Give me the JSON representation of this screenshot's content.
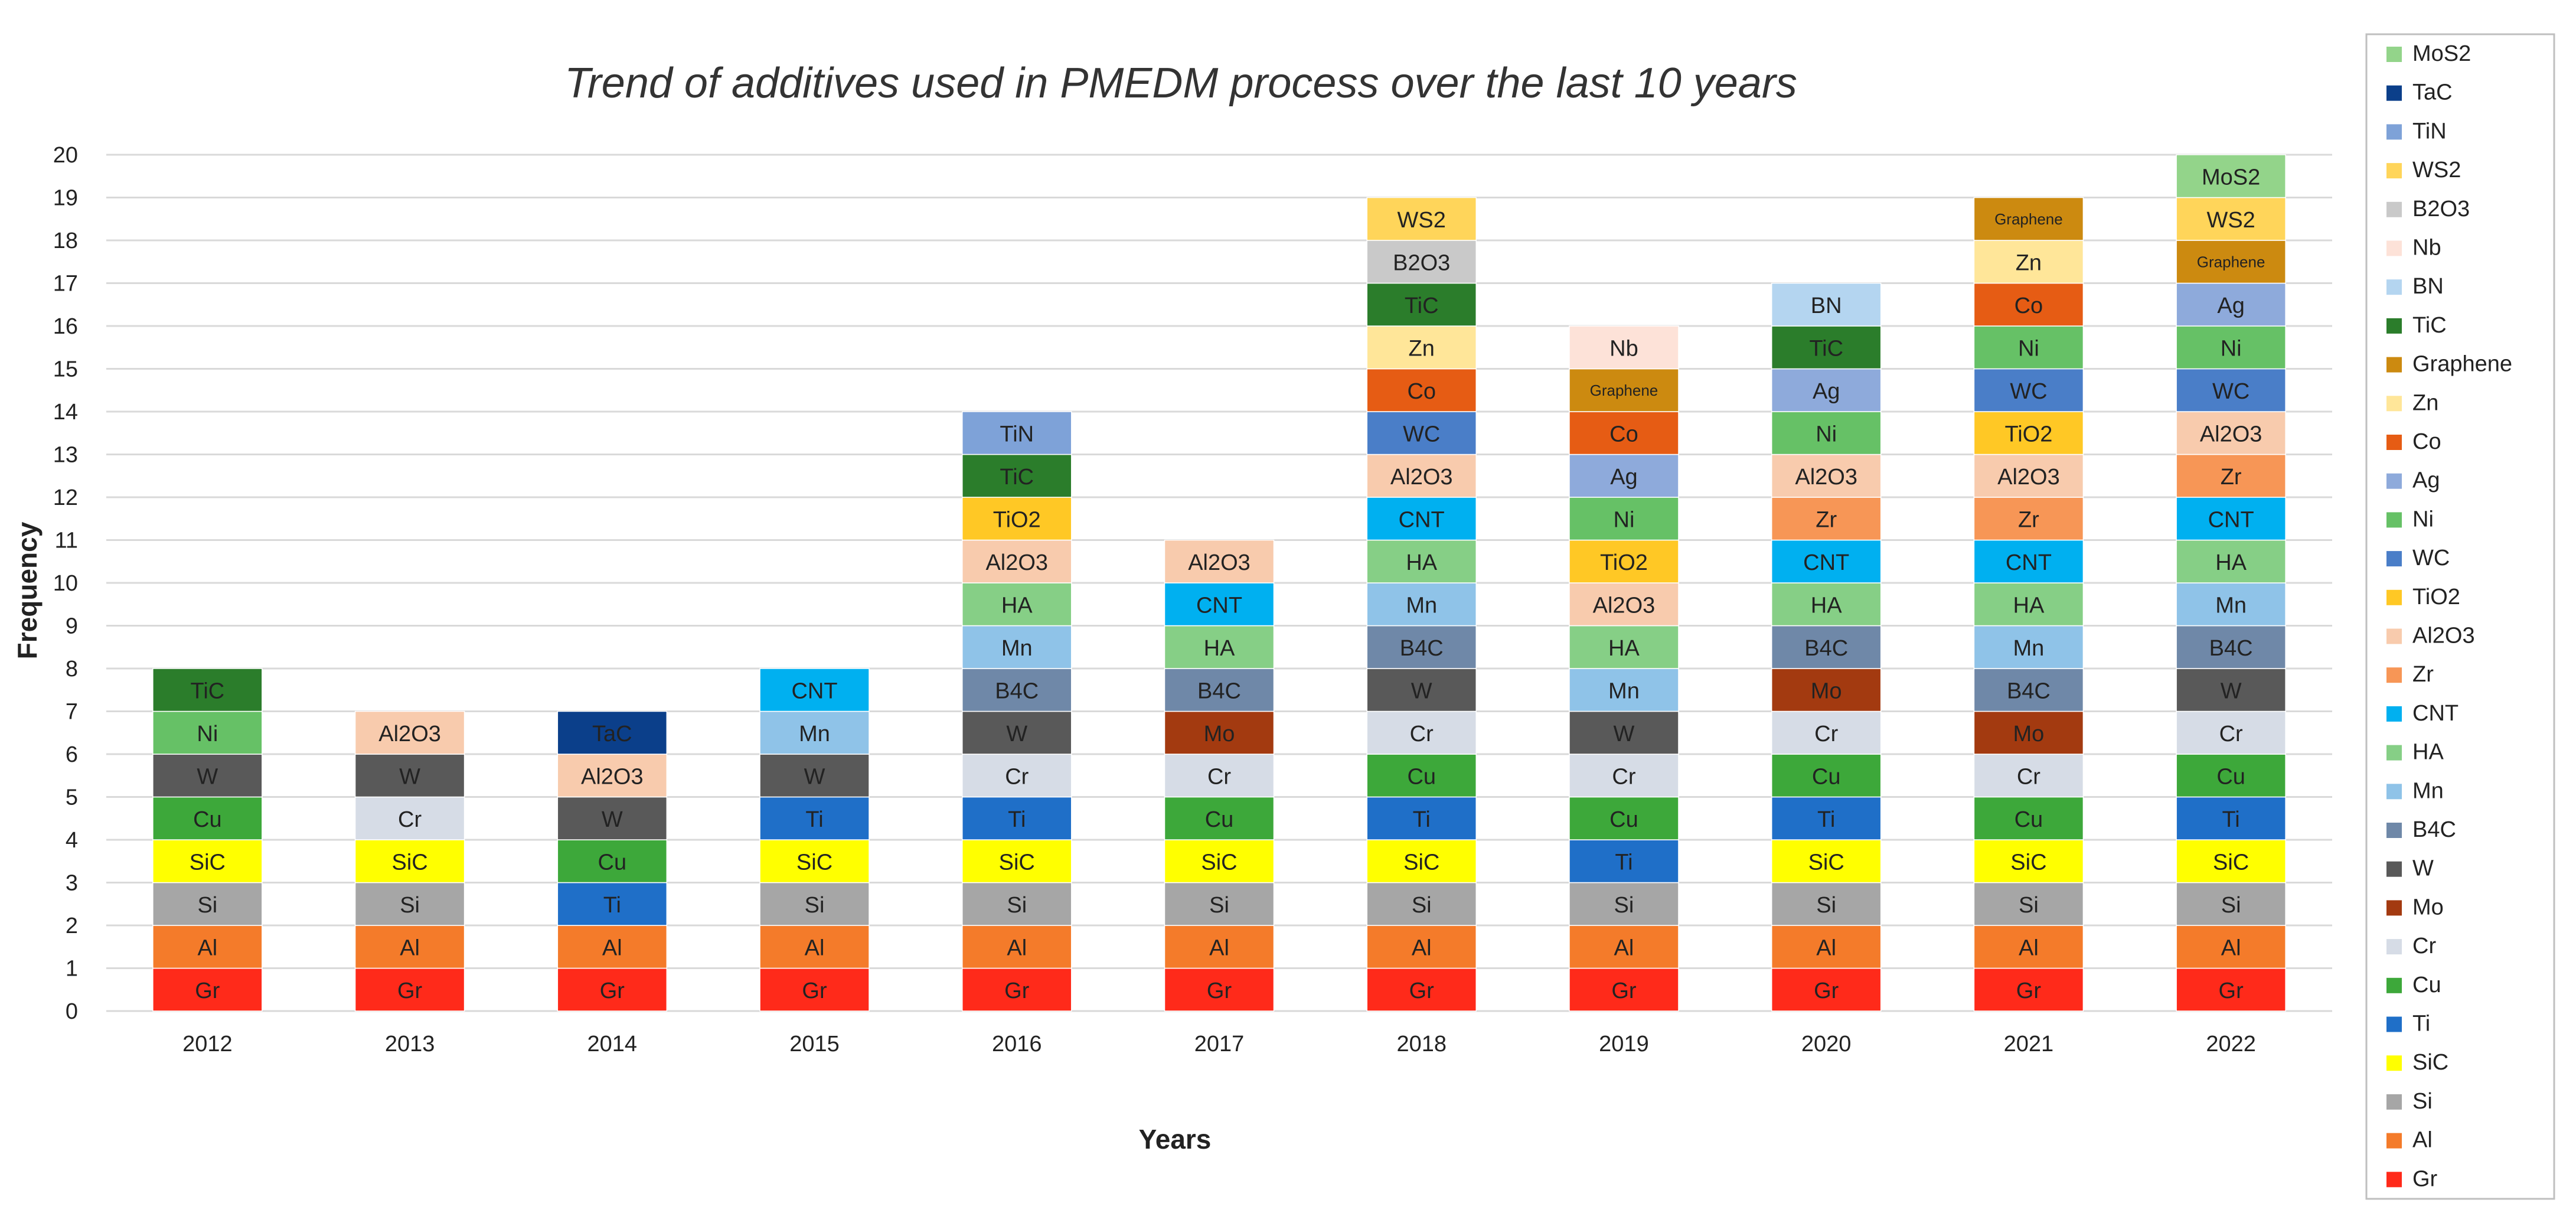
{
  "chart_data": {
    "type": "bar",
    "stacked": true,
    "title": "Trend of additives used in PMEDM process over the last 10 years",
    "xlabel": "Years",
    "ylabel": "Frequency",
    "ylim": [
      0,
      20
    ],
    "yticks": [
      0,
      1,
      2,
      3,
      4,
      5,
      6,
      7,
      8,
      9,
      10,
      11,
      12,
      13,
      14,
      15,
      16,
      17,
      18,
      19,
      20
    ],
    "grid": true,
    "legend_position": "right",
    "categories": [
      "2012",
      "2013",
      "2014",
      "2015",
      "2016",
      "2017",
      "2018",
      "2019",
      "2020",
      "2021",
      "2022"
    ],
    "colors": {
      "Gr": "#ff2a1a",
      "Al": "#f47b2a",
      "Si": "#a6a6a6",
      "SiC": "#ffff00",
      "Ti": "#1f6fc8",
      "Cu": "#3da83a",
      "Cr": "#d6dce6",
      "Mo": "#a33a10",
      "W": "#595959",
      "B4C": "#6f88a8",
      "Mn": "#8fc3e8",
      "HA": "#86cf86",
      "CNT": "#00b0f0",
      "Zr": "#f79656",
      "Al2O3": "#f8cbad",
      "TiO2": "#ffc825",
      "WC": "#4a7ec8",
      "Ni": "#66c166",
      "Ag": "#8eaadb",
      "Co": "#e65c14",
      "Zn": "#ffe699",
      "Graphene": "#cc8a10",
      "TiC": "#2b7d2b",
      "BN": "#b4d5f0",
      "Nb": "#fde2d8",
      "B2O3": "#c9c9c9",
      "WS2": "#ffd55a",
      "TiN": "#7ea2d8",
      "TaC": "#0b3f8a",
      "MoS2": "#93d48a"
    },
    "stacks": [
      [
        "Gr",
        "Al",
        "Si",
        "SiC",
        "Cu",
        "W",
        "Ni",
        "TiC"
      ],
      [
        "Gr",
        "Al",
        "Si",
        "SiC",
        "Cr",
        "W",
        "Al2O3"
      ],
      [
        "Gr",
        "Al",
        "Ti",
        "Cu",
        "W",
        "Al2O3",
        "TaC"
      ],
      [
        "Gr",
        "Al",
        "Si",
        "SiC",
        "Ti",
        "W",
        "Mn",
        "CNT"
      ],
      [
        "Gr",
        "Al",
        "Si",
        "SiC",
        "Ti",
        "Cr",
        "W",
        "B4C",
        "Mn",
        "HA",
        "Al2O3",
        "TiO2",
        "TiC",
        "TiN"
      ],
      [
        "Gr",
        "Al",
        "Si",
        "SiC",
        "Cu",
        "Cr",
        "Mo",
        "B4C",
        "HA",
        "CNT",
        "Al2O3"
      ],
      [
        "Gr",
        "Al",
        "Si",
        "SiC",
        "Ti",
        "Cu",
        "Cr",
        "W",
        "B4C",
        "Mn",
        "HA",
        "CNT",
        "Al2O3",
        "WC",
        "Co",
        "Zn",
        "TiC",
        "B2O3",
        "WS2"
      ],
      [
        "Gr",
        "Al",
        "Si",
        "Ti",
        "Cu",
        "Cr",
        "W",
        "Mn",
        "HA",
        "Al2O3",
        "TiO2",
        "Ni",
        "Ag",
        "Co",
        "Graphene",
        "Nb"
      ],
      [
        "Gr",
        "Al",
        "Si",
        "SiC",
        "Ti",
        "Cu",
        "Cr",
        "Mo",
        "B4C",
        "HA",
        "CNT",
        "Zr",
        "Al2O3",
        "Ni",
        "Ag",
        "TiC",
        "BN"
      ],
      [
        "Gr",
        "Al",
        "Si",
        "SiC",
        "Cu",
        "Cr",
        "Mo",
        "B4C",
        "Mn",
        "HA",
        "CNT",
        "Zr",
        "Al2O3",
        "TiO2",
        "WC",
        "Ni",
        "Co",
        "Zn",
        "Graphene"
      ],
      [
        "Gr",
        "Al",
        "Si",
        "SiC",
        "Ti",
        "Cu",
        "Cr",
        "W",
        "B4C",
        "Mn",
        "HA",
        "CNT",
        "Zr",
        "Al2O3",
        "WC",
        "Ni",
        "Ag",
        "Graphene",
        "WS2",
        "MoS2"
      ]
    ],
    "segment_labels": {
      "Al2O3": "Al2O3",
      "Graphene": "Graphene"
    },
    "legend": [
      "MoS2",
      "TaC",
      "TiN",
      "WS2",
      "B2O3",
      "Nb",
      "BN",
      "TiC",
      "Graphene",
      "Zn",
      "Co",
      "Ag",
      "Ni",
      "WC",
      "TiO2",
      "Al2O3",
      "Zr",
      "CNT",
      "HA",
      "Mn",
      "B4C",
      "W",
      "Mo",
      "Cr",
      "Cu",
      "Ti",
      "SiC",
      "Si",
      "Al",
      "Gr"
    ]
  }
}
